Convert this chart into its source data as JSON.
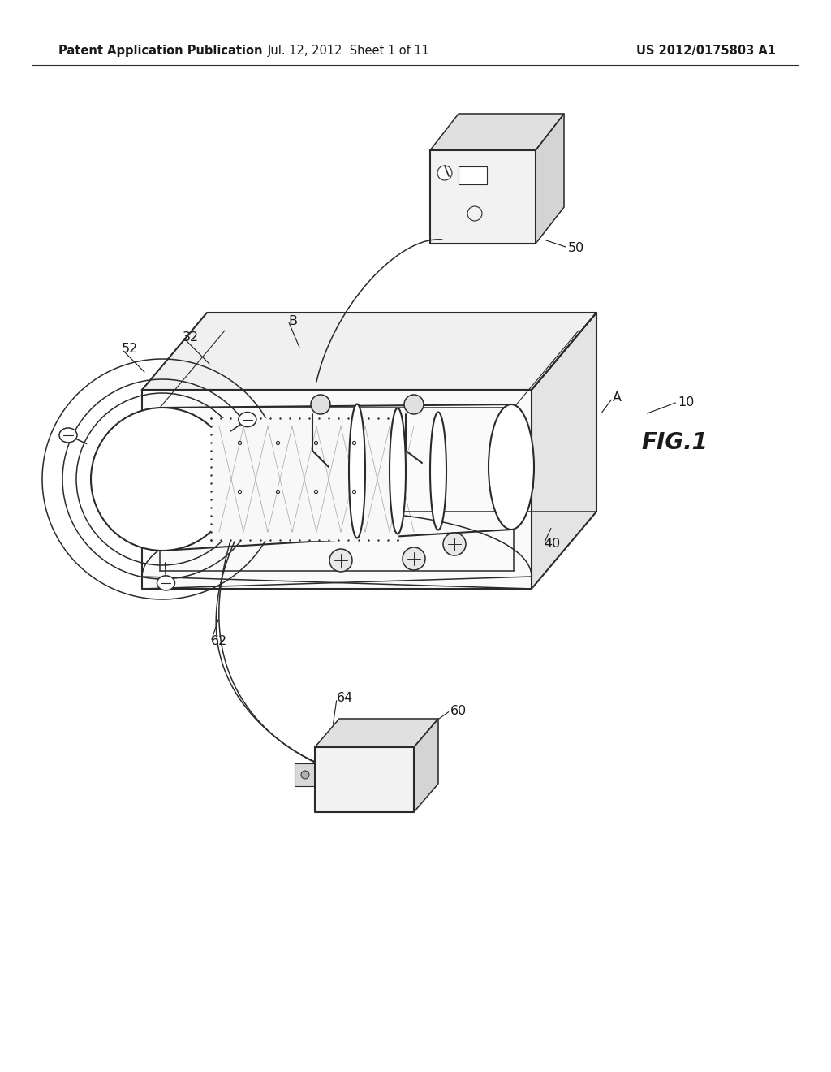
{
  "background_color": "#ffffff",
  "header_left": "Patent Application Publication",
  "header_center": "Jul. 12, 2012  Sheet 1 of 11",
  "header_right": "US 2012/0175803 A1",
  "figure_label": "FIG.1",
  "line_color": "#2a2a2a",
  "text_color": "#1a1a1a",
  "header_fontsize": 10.5,
  "label_fontsize": 11.5,
  "fig_label_fontsize": 20,
  "fig_width": 10.24,
  "fig_height": 13.2,
  "dpi": 100
}
